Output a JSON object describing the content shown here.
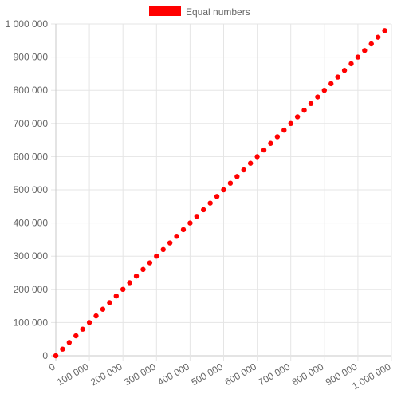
{
  "chart_data": {
    "type": "scatter",
    "legend": {
      "position": "top",
      "entries": [
        "Equal numbers"
      ]
    },
    "series": [
      {
        "name": "Equal numbers",
        "color": "#ff0000",
        "x": [
          0,
          20000,
          40000,
          60000,
          80000,
          100000,
          120000,
          140000,
          160000,
          180000,
          200000,
          220000,
          240000,
          260000,
          280000,
          300000,
          320000,
          340000,
          360000,
          380000,
          400000,
          420000,
          440000,
          460000,
          480000,
          500000,
          520000,
          540000,
          560000,
          580000,
          600000,
          620000,
          640000,
          660000,
          680000,
          700000,
          720000,
          740000,
          760000,
          780000,
          800000,
          820000,
          840000,
          860000,
          880000,
          900000,
          920000,
          940000,
          960000,
          980000
        ],
        "y": [
          0,
          20000,
          40000,
          60000,
          80000,
          100000,
          120000,
          140000,
          160000,
          180000,
          200000,
          220000,
          240000,
          260000,
          280000,
          300000,
          320000,
          340000,
          360000,
          380000,
          400000,
          420000,
          440000,
          460000,
          480000,
          500000,
          520000,
          540000,
          560000,
          580000,
          600000,
          620000,
          640000,
          660000,
          680000,
          700000,
          720000,
          740000,
          760000,
          780000,
          800000,
          820000,
          840000,
          860000,
          880000,
          900000,
          920000,
          940000,
          960000,
          980000
        ]
      }
    ],
    "xlim": [
      0,
      1000000
    ],
    "ylim": [
      0,
      1000000
    ],
    "x_ticks": [
      0,
      100000,
      200000,
      300000,
      400000,
      500000,
      600000,
      700000,
      800000,
      900000,
      1000000
    ],
    "x_tick_labels": [
      "0",
      "100 000",
      "200 000",
      "300 000",
      "400 000",
      "500 000",
      "600 000",
      "700 000",
      "800 000",
      "900 000",
      "1 000 000"
    ],
    "y_ticks": [
      0,
      100000,
      200000,
      300000,
      400000,
      500000,
      600000,
      700000,
      800000,
      900000,
      1000000
    ],
    "y_tick_labels": [
      "0",
      "100 000",
      "200 000",
      "300 000",
      "400 000",
      "500 000",
      "600 000",
      "700 000",
      "800 000",
      "900 000",
      "1 000 000"
    ],
    "grid": true
  }
}
